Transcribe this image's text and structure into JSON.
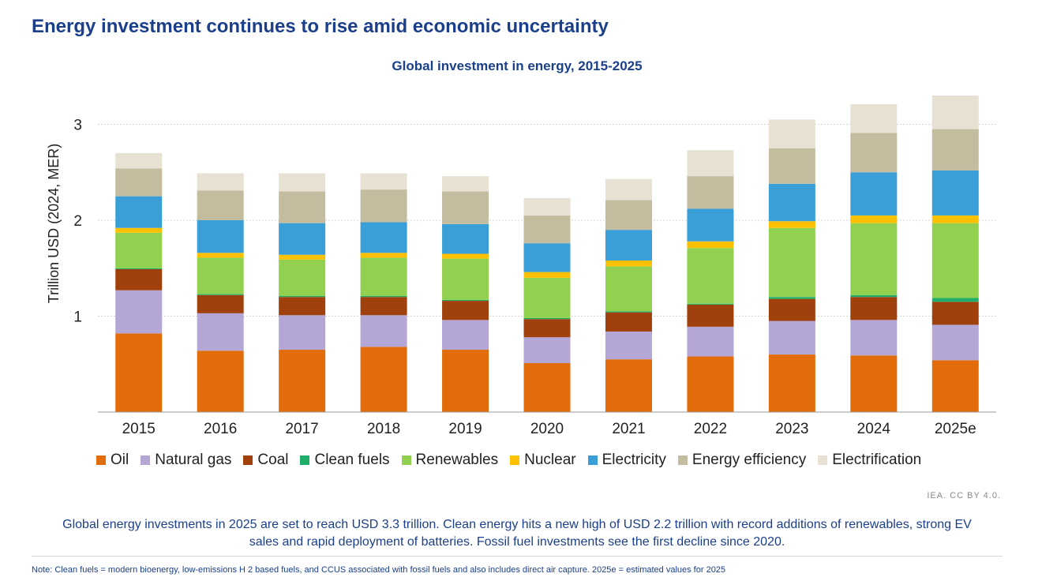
{
  "headline": "Energy investment continues to rise amid economic uncertainty",
  "credit": "IEA. CC BY 4.0.",
  "caption": "Global energy investments in 2025 are set to reach USD 3.3 trillion. Clean energy hits a new high of USD 2.2 trillion with record additions of renewables, strong EV sales and rapid deployment of batteries. Fossil fuel investments see the first decline since 2020.",
  "note": "Note: Clean fuels = modern bioenergy, low-emissions H 2 based fuels, and CCUS associated with fossil fuels and also includes direct air capture. 2025e = estimated values for 2025",
  "chart_data": {
    "type": "bar",
    "stacked": true,
    "title": "Global investment in energy, 2015-2025",
    "ylabel": "Trillion USD (2024, MER)",
    "xlabel": "",
    "ylim": [
      0,
      3.3
    ],
    "yticks": [
      1,
      2,
      3
    ],
    "grid": true,
    "legend_position": "bottom",
    "categories": [
      "2015",
      "2016",
      "2017",
      "2018",
      "2019",
      "2020",
      "2021",
      "2022",
      "2023",
      "2024",
      "2025e"
    ],
    "series": [
      {
        "name": "Oil",
        "color": "#e36c0a",
        "values": [
          0.82,
          0.64,
          0.65,
          0.68,
          0.65,
          0.51,
          0.55,
          0.58,
          0.6,
          0.59,
          0.54
        ]
      },
      {
        "name": "Natural gas",
        "color": "#b4a7d6",
        "values": [
          0.45,
          0.39,
          0.36,
          0.33,
          0.31,
          0.27,
          0.29,
          0.31,
          0.35,
          0.37,
          0.37
        ]
      },
      {
        "name": "Coal",
        "color": "#a0410d",
        "values": [
          0.22,
          0.19,
          0.19,
          0.19,
          0.2,
          0.19,
          0.2,
          0.23,
          0.23,
          0.24,
          0.24
        ]
      },
      {
        "name": "Clean fuels",
        "color": "#1fae6a",
        "values": [
          0.01,
          0.01,
          0.01,
          0.01,
          0.01,
          0.01,
          0.01,
          0.01,
          0.02,
          0.02,
          0.04
        ]
      },
      {
        "name": "Renewables",
        "color": "#92d050",
        "values": [
          0.37,
          0.38,
          0.38,
          0.4,
          0.43,
          0.42,
          0.47,
          0.58,
          0.72,
          0.75,
          0.78
        ]
      },
      {
        "name": "Nuclear",
        "color": "#ffc000",
        "values": [
          0.05,
          0.05,
          0.05,
          0.05,
          0.05,
          0.06,
          0.06,
          0.07,
          0.07,
          0.08,
          0.08
        ]
      },
      {
        "name": "Electricity",
        "color": "#3a9fd6",
        "values": [
          0.33,
          0.34,
          0.33,
          0.32,
          0.31,
          0.3,
          0.32,
          0.34,
          0.39,
          0.45,
          0.47
        ]
      },
      {
        "name": "Energy efficiency",
        "color": "#c4bc9e",
        "values": [
          0.29,
          0.31,
          0.33,
          0.34,
          0.34,
          0.29,
          0.31,
          0.34,
          0.37,
          0.41,
          0.43
        ]
      },
      {
        "name": "Electrification",
        "color": "#e6e1d3",
        "values": [
          0.16,
          0.18,
          0.19,
          0.17,
          0.16,
          0.18,
          0.22,
          0.27,
          0.3,
          0.3,
          0.35
        ]
      }
    ]
  }
}
